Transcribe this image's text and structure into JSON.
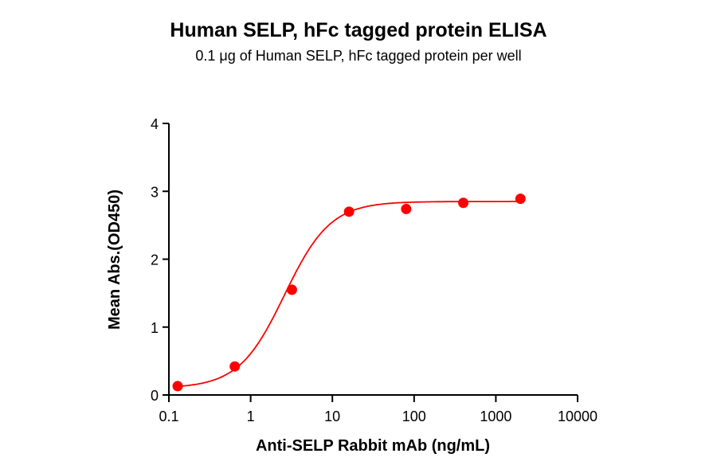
{
  "header": {
    "title": "Human SELP, hFc tagged protein ELISA",
    "subtitle": "0.1 μg of Human SELP, hFc tagged protein per well"
  },
  "colors": {
    "series": "#ff0000",
    "axis": "#000000"
  },
  "chart_data": {
    "type": "scatter",
    "title": "Human SELP, hFc tagged protein ELISA",
    "subtitle": "0.1 μg of Human SELP, hFc tagged protein per well",
    "xlabel": "Anti-SELP Rabbit mAb (ng/mL)",
    "ylabel": "Mean Abs.(OD450)",
    "xscale": "log",
    "xlim": [
      0.1,
      10000
    ],
    "ylim": [
      0,
      4
    ],
    "x_ticks": [
      "0.1",
      "1",
      "10",
      "100",
      "1000",
      "10000"
    ],
    "y_ticks": [
      "0",
      "1",
      "2",
      "3",
      "4"
    ],
    "grid": false,
    "legend": null,
    "series": [
      {
        "name": "Human SELP, hFc",
        "x": [
          0.128,
          0.64,
          3.2,
          16,
          80,
          400,
          2000
        ],
        "values": [
          0.13,
          0.42,
          1.55,
          2.7,
          2.74,
          2.83,
          2.89
        ],
        "fit": "4-parameter logistic",
        "fit_params": {
          "bottom": 0.1,
          "top": 2.85,
          "ec50": 2.6,
          "hill": 1.55
        }
      }
    ]
  }
}
